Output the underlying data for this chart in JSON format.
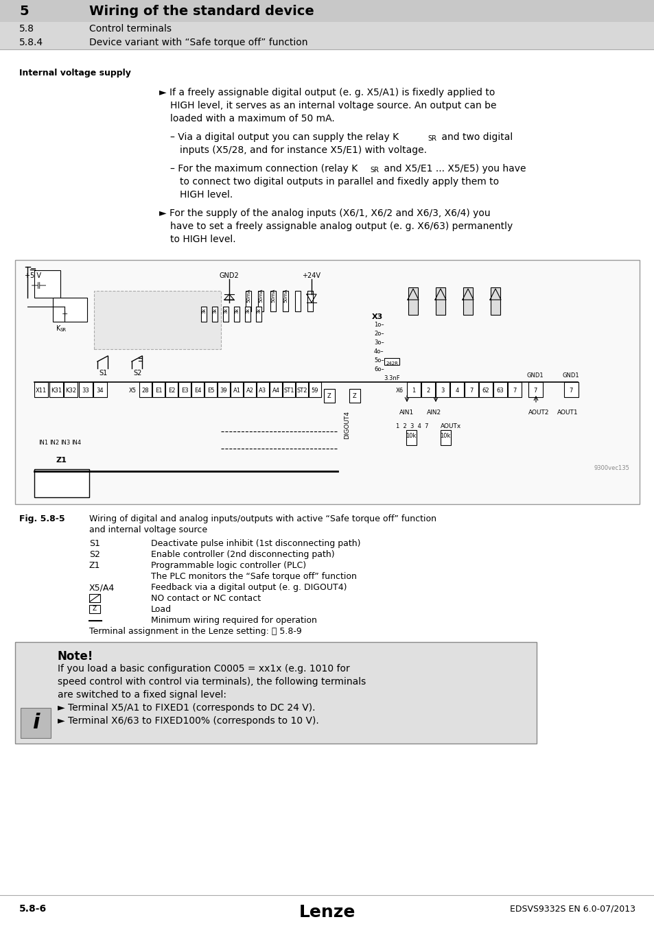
{
  "white": "#ffffff",
  "black": "#000000",
  "header_bg": "#d0d0d0",
  "header_sub_bg": "#d8d8d8",
  "note_bg": "#e0e0e0",
  "diagram_bg": "#f8f8f8",
  "gray_text": "#666666",
  "header": {
    "chapter_num": "5",
    "chapter_title": "Wiring of the standard device",
    "section1_num": "5.8",
    "section1_title": "Control terminals",
    "section2_num": "5.8.4",
    "section2_title": "Device variant with “Safe torque off” function"
  },
  "internal_voltage_label": "Internal voltage supply",
  "bullets": [
    {
      "type": "bullet",
      "lines": [
        "► If a freely assignable digital output (e. g. X5/A1) is fixedly applied to",
        "HIGH level, it serves as an internal voltage source. An output can be",
        "loaded with a maximum of 50 mA."
      ]
    },
    {
      "type": "subbullet",
      "lines": [
        "– Via a digital output you can supply the relay K$_{SR}$ and two digital",
        "inputs (X5/28, and for instance X5/E1) with voltage."
      ]
    },
    {
      "type": "subbullet",
      "lines": [
        "– For the maximum connection (relay K$_{SR}$ and X5/E1 ... X5/E5) you have",
        "to connect two digital outputs in parallel and fixedly apply them to",
        "HIGH level."
      ]
    },
    {
      "type": "bullet",
      "lines": [
        "► For the supply of the analog inputs (X6/1, X6/2 and X6/3, X6/4) you",
        "have to set a freely assignable analog output (e. g. X6/63) permanently",
        "to HIGH level."
      ]
    }
  ],
  "fig_label": "Fig. 5.8-5",
  "fig_caption": [
    "Wiring of digital and analog inputs/outputs with active “Safe torque off” function",
    "and internal voltage source"
  ],
  "legend": [
    {
      "key": "S1",
      "tab": "        ",
      "text": "Deactivate pulse inhibit (1st disconnecting path)"
    },
    {
      "key": "S2",
      "tab": "        ",
      "text": "Enable controller (2nd disconnecting path)"
    },
    {
      "key": "Z1",
      "tab": "        ",
      "text": "Programmable logic controller (PLC)"
    },
    {
      "key": "",
      "tab": "            ",
      "text": "The PLC monitors the “Safe torque off” function"
    },
    {
      "key": "X5/A4",
      "tab": "  ",
      "text": "Feedback via a digital output (e. g. DIGOUT4)"
    },
    {
      "key": "NC_SYMBOL",
      "tab": "",
      "text": "NO contact or NC contact"
    },
    {
      "key": "LOAD_SYMBOL",
      "tab": "",
      "text": "Load"
    },
    {
      "key": "LINE_SYMBOL",
      "tab": "",
      "text": "Minimum wiring required for operation"
    },
    {
      "key": "TERMINAL",
      "tab": "",
      "text": "Terminal assignment in the Lenze setting: ⬜ 5.8-9"
    }
  ],
  "note_title": "Note!",
  "note_lines": [
    "If you load a basic configuration C0005 = xx1x (e.g. 1010 for",
    "speed control with control via terminals), the following terminals",
    "are switched to a fixed signal level:",
    "► Terminal X5/A1 to FIXED1 (corresponds to DC 24 V).",
    "► Terminal X6/63 to FIXED100% (corresponds to 10 V)."
  ],
  "footer_left": "5.8-6",
  "footer_center": "Lenze",
  "footer_right": "EDSVS9332S EN 6.0-07/2013"
}
